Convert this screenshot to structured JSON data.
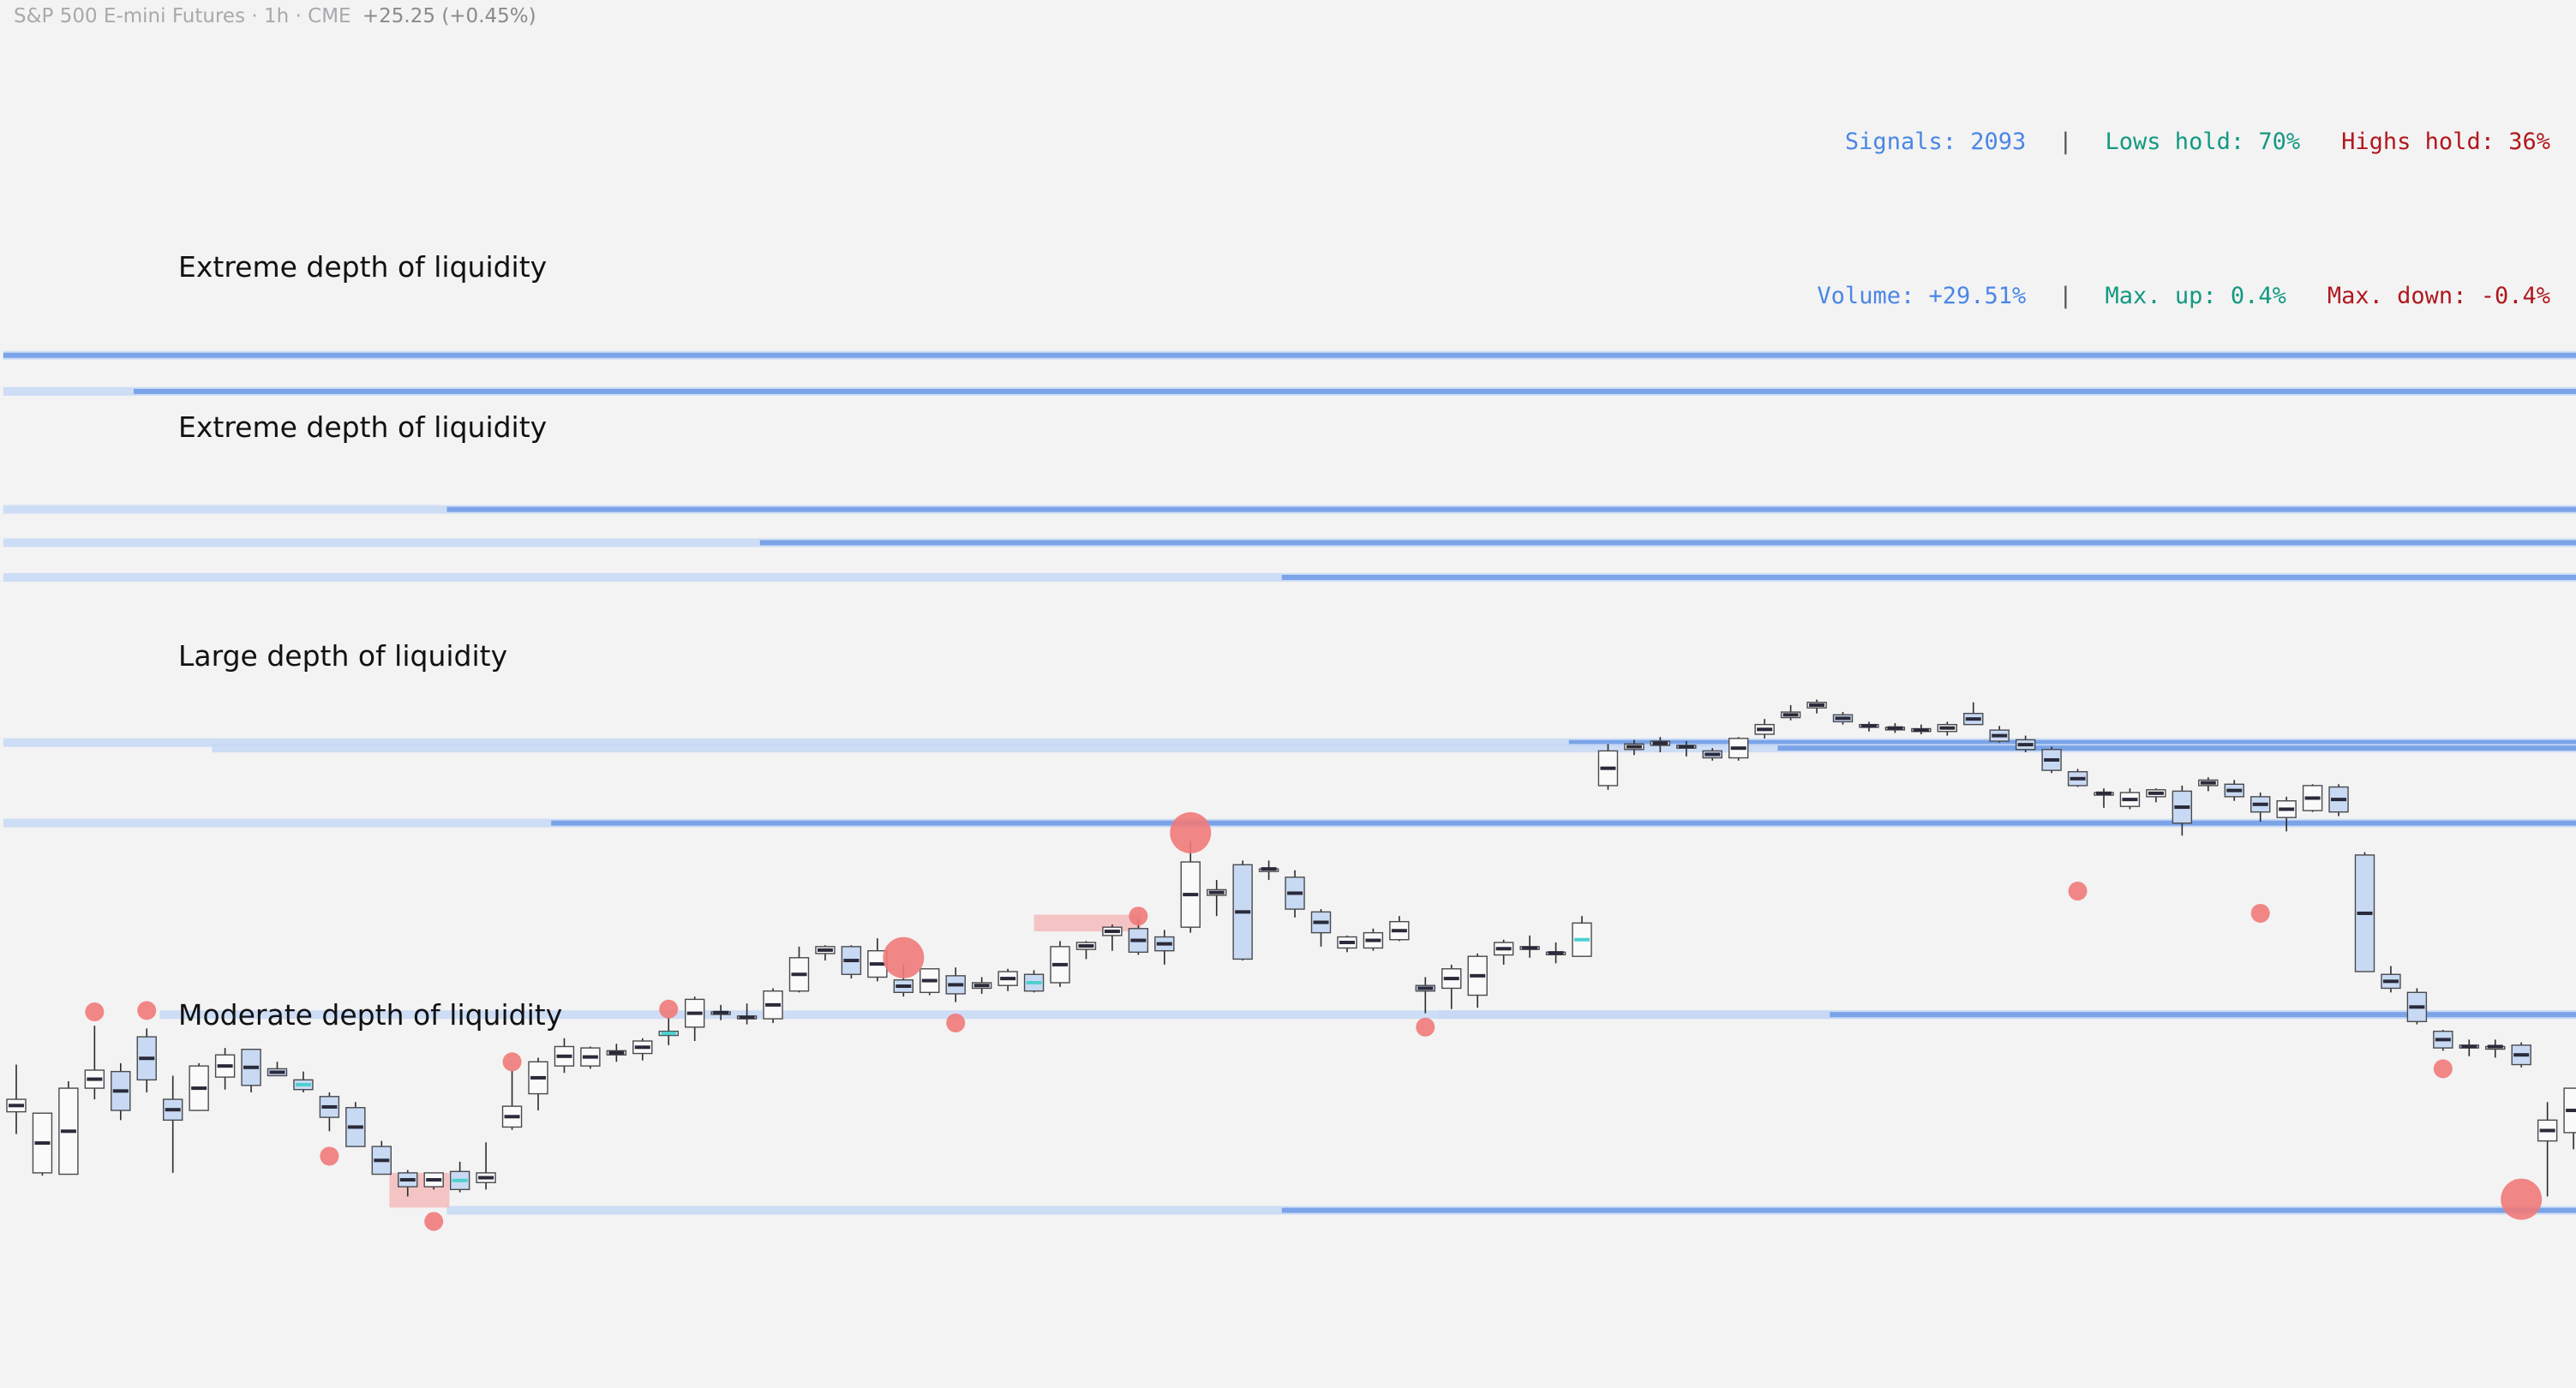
{
  "header": {
    "instrument": "S&P 500 E-mini Futures · 1h · CME",
    "change": "+25.25 (+0.45%)"
  },
  "stats": {
    "signals_label": "Signals:",
    "signals_value": "2093",
    "lows_hold_label": "Lows hold:",
    "lows_hold_value": "70%",
    "highs_hold_label": "Highs hold:",
    "highs_hold_value": "36%",
    "volume_label": "Volume:",
    "volume_value": "+29.51%",
    "max_up_label": "Max. up:",
    "max_up_value": "0.4%",
    "max_down_label": "Max. down:",
    "max_down_value": "-0.4%",
    "separator": "|"
  },
  "colors": {
    "background": "#f3f3f3",
    "liquidity_strong": "#7aa3e8",
    "liquidity_light": "#c5d8f5",
    "candle_fill": "#c8daf3",
    "candle_cyan": "#4dd0d0",
    "signal_dot": "#f07a7a",
    "zone_box": "#f4b4b4",
    "blue_text": "#4a86e6",
    "green_text": "#139981",
    "red_text": "#b0181e"
  },
  "chart_data": {
    "type": "candlestick",
    "price_range": [
      0,
      100
    ],
    "zone_labels": [
      {
        "text": "Extreme depth of liquidity",
        "price": 80.6
      },
      {
        "text": "Extreme depth of liquidity",
        "price": 69.1
      },
      {
        "text": "Large depth of liquidity",
        "price": 52.6
      },
      {
        "text": "Moderate depth of liquidity",
        "price": 26.7
      }
    ],
    "liquidity_levels": [
      {
        "price": 74.4,
        "from_bar": 0,
        "strength": "strong"
      },
      {
        "price": 71.8,
        "from_bar": 0,
        "strength": "light",
        "strong_from_bar": 5
      },
      {
        "price": 63.3,
        "from_bar": 0,
        "strength": "light",
        "strong_from_bar": 17
      },
      {
        "price": 60.9,
        "from_bar": 0,
        "strength": "light",
        "strong_from_bar": 29
      },
      {
        "price": 58.4,
        "from_bar": 0,
        "strength": "light",
        "strong_from_bar": 49
      },
      {
        "price": 46.5,
        "from_bar": 0,
        "strength": "light",
        "strong_from_bar": 60
      },
      {
        "price": 46.1,
        "from_bar": 8,
        "strength": "light",
        "strong_from_bar": 68
      },
      {
        "price": 40.7,
        "from_bar": 0,
        "strength": "light",
        "strong_from_bar": 21
      },
      {
        "price": 26.9,
        "from_bar": 6,
        "strength": "light"
      },
      {
        "price": 26.9,
        "from_bar": 55,
        "strength": "light",
        "strong_from_bar": 70
      },
      {
        "price": 12.8,
        "from_bar": 17,
        "strength": "light",
        "strong_from_bar": 49
      }
    ],
    "signals": [
      {
        "bar": 3,
        "price": 27.1,
        "size": "small"
      },
      {
        "bar": 5,
        "price": 27.2,
        "size": "small"
      },
      {
        "bar": 12,
        "price": 16.7,
        "size": "small"
      },
      {
        "bar": 16,
        "price": 12.0,
        "size": "small"
      },
      {
        "bar": 19,
        "price": 23.5,
        "size": "small"
      },
      {
        "bar": 25,
        "price": 27.3,
        "size": "small"
      },
      {
        "bar": 34,
        "price": 31.0,
        "size": "large"
      },
      {
        "bar": 36,
        "price": 26.3,
        "size": "small"
      },
      {
        "bar": 43,
        "price": 34.0,
        "size": "small"
      },
      {
        "bar": 45,
        "price": 40.0,
        "size": "large"
      },
      {
        "bar": 54,
        "price": 26.0,
        "size": "small"
      },
      {
        "bar": 79,
        "price": 35.8,
        "size": "small"
      },
      {
        "bar": 86,
        "price": 34.2,
        "size": "small"
      },
      {
        "bar": 93,
        "price": 23.0,
        "size": "small"
      },
      {
        "bar": 96,
        "price": 13.6,
        "size": "large"
      }
    ],
    "zone_boxes": [
      {
        "from_bar": 14.3,
        "to_bar": 16.6,
        "low": 13.0,
        "high": 15.5
      },
      {
        "from_bar": 39.0,
        "to_bar": 43.1,
        "low": 32.9,
        "high": 34.1
      }
    ],
    "candles": [
      {
        "o": 19.9,
        "h": 23.3,
        "l": 18.3,
        "c": 20.8,
        "cyan": false
      },
      {
        "o": 15.5,
        "h": 19.7,
        "l": 15.3,
        "c": 19.8,
        "cyan": false
      },
      {
        "o": 15.4,
        "h": 22.1,
        "l": 15.4,
        "c": 21.6,
        "cyan": false
      },
      {
        "o": 21.6,
        "h": 26.1,
        "l": 20.8,
        "c": 22.9,
        "cyan": false
      },
      {
        "o": 22.8,
        "h": 23.4,
        "l": 19.3,
        "c": 20.0,
        "cyan": false
      },
      {
        "o": 25.3,
        "h": 25.9,
        "l": 21.3,
        "c": 22.2,
        "cyan": false
      },
      {
        "o": 20.8,
        "h": 22.5,
        "l": 15.5,
        "c": 19.3,
        "cyan": false
      },
      {
        "o": 20.0,
        "h": 23.4,
        "l": 20.0,
        "c": 23.2,
        "cyan": false
      },
      {
        "o": 22.4,
        "h": 24.5,
        "l": 21.5,
        "c": 24.0,
        "cyan": false
      },
      {
        "o": 24.4,
        "h": 24.4,
        "l": 21.3,
        "c": 21.8,
        "cyan": false
      },
      {
        "o": 23.0,
        "h": 23.5,
        "l": 22.5,
        "c": 22.5,
        "cyan": false
      },
      {
        "o": 22.2,
        "h": 22.8,
        "l": 21.3,
        "c": 21.5,
        "cyan": true
      },
      {
        "o": 21.0,
        "h": 21.3,
        "l": 18.5,
        "c": 19.5,
        "cyan": false
      },
      {
        "o": 20.2,
        "h": 20.6,
        "l": 17.4,
        "c": 17.4,
        "cyan": false
      },
      {
        "o": 17.4,
        "h": 17.8,
        "l": 15.4,
        "c": 15.4,
        "cyan": false
      },
      {
        "o": 15.5,
        "h": 15.7,
        "l": 13.8,
        "c": 14.5,
        "cyan": false
      },
      {
        "o": 14.5,
        "h": 15.5,
        "l": 14.3,
        "c": 15.5,
        "cyan": false
      },
      {
        "o": 15.6,
        "h": 16.3,
        "l": 14.1,
        "c": 14.3,
        "cyan": true
      },
      {
        "o": 14.8,
        "h": 17.7,
        "l": 14.3,
        "c": 15.5,
        "cyan": false
      },
      {
        "o": 18.8,
        "h": 22.9,
        "l": 18.6,
        "c": 20.3,
        "cyan": false
      },
      {
        "o": 21.2,
        "h": 23.8,
        "l": 20.0,
        "c": 23.5,
        "cyan": false
      },
      {
        "o": 23.2,
        "h": 25.2,
        "l": 22.7,
        "c": 24.6,
        "cyan": false
      },
      {
        "o": 23.2,
        "h": 24.6,
        "l": 23.0,
        "c": 24.5,
        "cyan": false
      },
      {
        "o": 24.0,
        "h": 24.8,
        "l": 23.5,
        "c": 24.3,
        "cyan": false
      },
      {
        "o": 24.1,
        "h": 25.2,
        "l": 23.6,
        "c": 25.0,
        "cyan": false
      },
      {
        "o": 25.4,
        "h": 26.7,
        "l": 24.7,
        "c": 25.7,
        "cyan": true
      },
      {
        "o": 26.0,
        "h": 28.2,
        "l": 25.0,
        "c": 28.0,
        "cyan": false
      },
      {
        "o": 27.1,
        "h": 27.6,
        "l": 26.5,
        "c": 27.0,
        "cyan": false
      },
      {
        "o": 26.8,
        "h": 27.7,
        "l": 26.2,
        "c": 26.6,
        "cyan": false
      },
      {
        "o": 26.6,
        "h": 28.8,
        "l": 26.3,
        "c": 28.6,
        "cyan": false
      },
      {
        "o": 28.6,
        "h": 31.8,
        "l": 28.5,
        "c": 31.0,
        "cyan": false
      },
      {
        "o": 31.3,
        "h": 31.9,
        "l": 30.8,
        "c": 31.8,
        "cyan": false
      },
      {
        "o": 31.8,
        "h": 31.9,
        "l": 29.5,
        "c": 29.8,
        "cyan": false
      },
      {
        "o": 29.6,
        "h": 32.4,
        "l": 29.3,
        "c": 31.5,
        "cyan": false
      },
      {
        "o": 29.4,
        "h": 30.5,
        "l": 28.2,
        "c": 28.5,
        "cyan": false
      },
      {
        "o": 28.5,
        "h": 30.2,
        "l": 28.3,
        "c": 30.2,
        "cyan": false
      },
      {
        "o": 29.7,
        "h": 30.3,
        "l": 27.8,
        "c": 28.4,
        "cyan": false
      },
      {
        "o": 28.8,
        "h": 29.6,
        "l": 28.4,
        "c": 29.2,
        "cyan": false
      },
      {
        "o": 29.0,
        "h": 30.2,
        "l": 28.6,
        "c": 30.0,
        "cyan": false
      },
      {
        "o": 29.8,
        "h": 30.1,
        "l": 28.5,
        "c": 28.6,
        "cyan": true
      },
      {
        "o": 29.2,
        "h": 32.2,
        "l": 28.9,
        "c": 31.8,
        "cyan": false
      },
      {
        "o": 31.6,
        "h": 32.2,
        "l": 30.9,
        "c": 32.1,
        "cyan": false
      },
      {
        "o": 32.6,
        "h": 33.4,
        "l": 31.5,
        "c": 33.2,
        "cyan": false
      },
      {
        "o": 33.1,
        "h": 33.8,
        "l": 31.2,
        "c": 31.4,
        "cyan": false
      },
      {
        "o": 32.5,
        "h": 33.0,
        "l": 30.5,
        "c": 31.5,
        "cyan": false
      },
      {
        "o": 33.2,
        "h": 39.4,
        "l": 32.8,
        "c": 37.9,
        "cyan": false
      },
      {
        "o": 35.5,
        "h": 36.6,
        "l": 34.0,
        "c": 35.9,
        "cyan": false
      },
      {
        "o": 37.7,
        "h": 38.0,
        "l": 30.8,
        "c": 30.9,
        "cyan": false
      },
      {
        "o": 37.4,
        "h": 38.0,
        "l": 36.6,
        "c": 37.4,
        "cyan": false
      },
      {
        "o": 36.8,
        "h": 37.3,
        "l": 33.9,
        "c": 34.5,
        "cyan": false
      },
      {
        "o": 34.3,
        "h": 34.5,
        "l": 31.8,
        "c": 32.8,
        "cyan": false
      },
      {
        "o": 31.7,
        "h": 32.6,
        "l": 31.4,
        "c": 32.5,
        "cyan": false
      },
      {
        "o": 31.7,
        "h": 33.1,
        "l": 31.5,
        "c": 32.8,
        "cyan": false
      },
      {
        "o": 32.3,
        "h": 34.0,
        "l": 32.2,
        "c": 33.6,
        "cyan": false
      },
      {
        "o": 29.0,
        "h": 29.6,
        "l": 27.0,
        "c": 28.6,
        "cyan": false
      },
      {
        "o": 28.8,
        "h": 30.5,
        "l": 27.3,
        "c": 30.2,
        "cyan": false
      },
      {
        "o": 28.3,
        "h": 31.3,
        "l": 27.4,
        "c": 31.1,
        "cyan": false
      },
      {
        "o": 31.2,
        "h": 32.3,
        "l": 30.5,
        "c": 32.1,
        "cyan": false
      },
      {
        "o": 31.8,
        "h": 32.6,
        "l": 31.0,
        "c": 31.6,
        "cyan": false
      },
      {
        "o": 31.3,
        "h": 32.1,
        "l": 30.6,
        "c": 31.4,
        "cyan": false
      },
      {
        "o": 31.1,
        "h": 34.0,
        "l": 31.1,
        "c": 33.5,
        "cyan": true
      },
      {
        "o": 43.4,
        "h": 46.4,
        "l": 43.1,
        "c": 45.9,
        "cyan": false
      },
      {
        "o": 46.0,
        "h": 46.7,
        "l": 45.6,
        "c": 46.4,
        "cyan": false
      },
      {
        "o": 46.3,
        "h": 46.9,
        "l": 45.8,
        "c": 46.6,
        "cyan": false
      },
      {
        "o": 46.3,
        "h": 46.6,
        "l": 45.5,
        "c": 46.1,
        "cyan": false
      },
      {
        "o": 45.9,
        "h": 46.1,
        "l": 45.2,
        "c": 45.4,
        "cyan": false
      },
      {
        "o": 45.4,
        "h": 46.9,
        "l": 45.2,
        "c": 46.8,
        "cyan": false
      },
      {
        "o": 47.1,
        "h": 48.2,
        "l": 46.8,
        "c": 47.8,
        "cyan": false
      },
      {
        "o": 48.3,
        "h": 49.2,
        "l": 48.1,
        "c": 48.7,
        "cyan": false
      },
      {
        "o": 49.0,
        "h": 49.6,
        "l": 48.6,
        "c": 49.4,
        "cyan": false
      },
      {
        "o": 48.5,
        "h": 48.7,
        "l": 47.8,
        "c": 48.0,
        "cyan": false
      },
      {
        "o": 47.8,
        "h": 48.0,
        "l": 47.3,
        "c": 47.6,
        "cyan": false
      },
      {
        "o": 47.6,
        "h": 47.9,
        "l": 47.2,
        "c": 47.5,
        "cyan": false
      },
      {
        "o": 47.5,
        "h": 47.8,
        "l": 47.1,
        "c": 47.3,
        "cyan": false
      },
      {
        "o": 47.3,
        "h": 48.0,
        "l": 47.0,
        "c": 47.8,
        "cyan": false
      },
      {
        "o": 48.6,
        "h": 49.4,
        "l": 48.0,
        "c": 47.8,
        "cyan": false
      },
      {
        "o": 47.4,
        "h": 47.7,
        "l": 46.5,
        "c": 46.6,
        "cyan": false
      },
      {
        "o": 46.7,
        "h": 47.0,
        "l": 45.8,
        "c": 46.0,
        "cyan": false
      },
      {
        "o": 46.0,
        "h": 46.2,
        "l": 44.3,
        "c": 44.5,
        "cyan": false
      },
      {
        "o": 44.4,
        "h": 44.6,
        "l": 43.3,
        "c": 43.4,
        "cyan": false
      },
      {
        "o": 42.8,
        "h": 43.2,
        "l": 41.8,
        "c": 42.9,
        "cyan": false
      },
      {
        "o": 41.9,
        "h": 43.2,
        "l": 41.7,
        "c": 42.9,
        "cyan": false
      },
      {
        "o": 42.6,
        "h": 43.2,
        "l": 42.2,
        "c": 43.1,
        "cyan": false
      },
      {
        "o": 43.0,
        "h": 43.4,
        "l": 39.8,
        "c": 40.7,
        "cyan": false
      },
      {
        "o": 43.4,
        "h": 44.0,
        "l": 43.0,
        "c": 43.8,
        "cyan": false
      },
      {
        "o": 43.5,
        "h": 43.8,
        "l": 42.3,
        "c": 42.6,
        "cyan": false
      },
      {
        "o": 42.6,
        "h": 42.9,
        "l": 40.8,
        "c": 41.5,
        "cyan": false
      },
      {
        "o": 41.1,
        "h": 42.6,
        "l": 40.1,
        "c": 42.3,
        "cyan": false
      },
      {
        "o": 41.6,
        "h": 43.5,
        "l": 41.5,
        "c": 43.4,
        "cyan": false
      },
      {
        "o": 43.3,
        "h": 43.5,
        "l": 41.2,
        "c": 41.5,
        "cyan": false
      },
      {
        "o": 38.4,
        "h": 38.6,
        "l": 30.0,
        "c": 30.0,
        "cyan": false
      },
      {
        "o": 29.8,
        "h": 30.4,
        "l": 28.5,
        "c": 28.8,
        "cyan": false
      },
      {
        "o": 28.5,
        "h": 28.8,
        "l": 26.2,
        "c": 26.4,
        "cyan": false
      },
      {
        "o": 25.7,
        "h": 25.8,
        "l": 24.3,
        "c": 24.5,
        "cyan": false
      },
      {
        "o": 24.7,
        "h": 25.1,
        "l": 23.9,
        "c": 24.5,
        "cyan": false
      },
      {
        "o": 24.6,
        "h": 25.1,
        "l": 23.8,
        "c": 24.6,
        "cyan": false
      },
      {
        "o": 24.7,
        "h": 24.9,
        "l": 23.1,
        "c": 23.3,
        "cyan": false
      },
      {
        "o": 17.8,
        "h": 20.6,
        "l": 13.8,
        "c": 19.3,
        "cyan": false
      },
      {
        "o": 18.4,
        "h": 21.6,
        "l": 17.2,
        "c": 21.6,
        "cyan": false
      },
      {
        "o": 21.4,
        "h": 22.8,
        "l": 20.5,
        "c": 22.8,
        "cyan": false
      }
    ]
  }
}
